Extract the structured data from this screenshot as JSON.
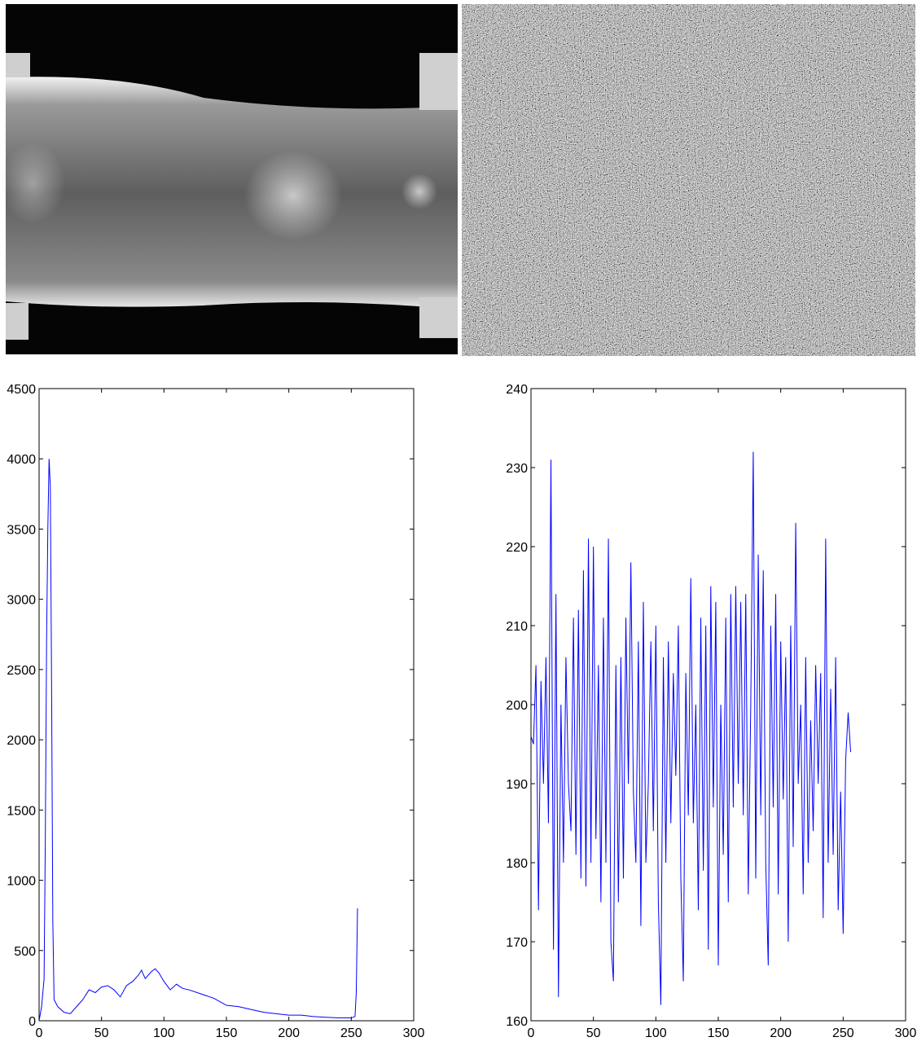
{
  "chart_data": [
    {
      "type": "line",
      "x": [
        0,
        2,
        4,
        5,
        6,
        7,
        8,
        9,
        10,
        11,
        12,
        15,
        20,
        25,
        30,
        35,
        40,
        45,
        50,
        55,
        60,
        65,
        70,
        75,
        80,
        82,
        85,
        90,
        93,
        96,
        100,
        105,
        110,
        115,
        120,
        130,
        140,
        150,
        160,
        170,
        180,
        190,
        200,
        210,
        220,
        230,
        240,
        250,
        253,
        254,
        255
      ],
      "series": [
        {
          "color": "#0000ff",
          "values": [
            0,
            100,
            300,
            1300,
            2700,
            3500,
            4000,
            3800,
            2400,
            700,
            150,
            100,
            60,
            50,
            100,
            150,
            220,
            200,
            240,
            250,
            220,
            170,
            250,
            280,
            330,
            360,
            300,
            350,
            370,
            340,
            280,
            220,
            260,
            230,
            220,
            190,
            160,
            110,
            100,
            80,
            60,
            50,
            40,
            40,
            30,
            25,
            20,
            20,
            30,
            200,
            800
          ]
        }
      ],
      "xlim": [
        0,
        300
      ],
      "ylim": [
        0,
        4500
      ],
      "xticks": [
        0,
        50,
        100,
        150,
        200,
        250,
        300
      ],
      "yticks": [
        0,
        500,
        1000,
        1500,
        2000,
        2500,
        3000,
        3500,
        4000,
        4500
      ]
    },
    {
      "type": "line",
      "x": [
        0,
        2,
        4,
        6,
        8,
        10,
        12,
        14,
        16,
        18,
        20,
        22,
        24,
        26,
        28,
        30,
        32,
        34,
        36,
        38,
        40,
        42,
        44,
        46,
        48,
        50,
        52,
        54,
        56,
        58,
        60,
        62,
        64,
        66,
        68,
        70,
        72,
        74,
        76,
        78,
        80,
        82,
        84,
        86,
        88,
        90,
        92,
        94,
        96,
        98,
        100,
        102,
        104,
        106,
        108,
        110,
        112,
        114,
        116,
        118,
        120,
        122,
        124,
        126,
        128,
        130,
        132,
        134,
        136,
        138,
        140,
        142,
        144,
        146,
        148,
        150,
        152,
        154,
        156,
        158,
        160,
        162,
        164,
        166,
        168,
        170,
        172,
        174,
        176,
        178,
        180,
        182,
        184,
        186,
        188,
        190,
        192,
        194,
        196,
        198,
        200,
        202,
        204,
        206,
        208,
        210,
        212,
        214,
        216,
        218,
        220,
        222,
        224,
        226,
        228,
        230,
        232,
        234,
        236,
        238,
        240,
        242,
        244,
        246,
        248,
        250,
        252,
        254,
        256
      ],
      "series": [
        {
          "color": "#0000ff",
          "values": [
            196,
            195,
            205,
            174,
            203,
            190,
            206,
            185,
            231,
            169,
            214,
            163,
            200,
            180,
            206,
            190,
            184,
            211,
            181,
            212,
            178,
            217,
            177,
            221,
            180,
            220,
            183,
            205,
            175,
            211,
            180,
            221,
            170,
            165,
            205,
            175,
            206,
            178,
            211,
            190,
            218,
            189,
            180,
            208,
            172,
            213,
            180,
            190,
            208,
            184,
            210,
            175,
            162,
            206,
            180,
            208,
            185,
            204,
            191,
            210,
            178,
            165,
            204,
            186,
            216,
            185,
            200,
            174,
            211,
            179,
            210,
            169,
            215,
            187,
            213,
            167,
            200,
            181,
            211,
            175,
            214,
            187,
            215,
            190,
            213,
            186,
            214,
            176,
            200,
            232,
            178,
            219,
            186,
            217,
            180,
            167,
            210,
            187,
            214,
            176,
            208,
            188,
            206,
            170,
            210,
            182,
            223,
            190,
            200,
            176,
            206,
            180,
            198,
            184,
            205,
            190,
            204,
            173,
            221,
            180,
            202,
            181,
            206,
            174,
            189,
            171,
            193,
            199,
            194
          ]
        }
      ],
      "xlim": [
        0,
        300
      ],
      "ylim": [
        160,
        240
      ],
      "xticks": [
        0,
        50,
        100,
        150,
        200,
        250,
        300
      ],
      "yticks": [
        160,
        170,
        180,
        190,
        200,
        210,
        220,
        230,
        240
      ]
    }
  ]
}
